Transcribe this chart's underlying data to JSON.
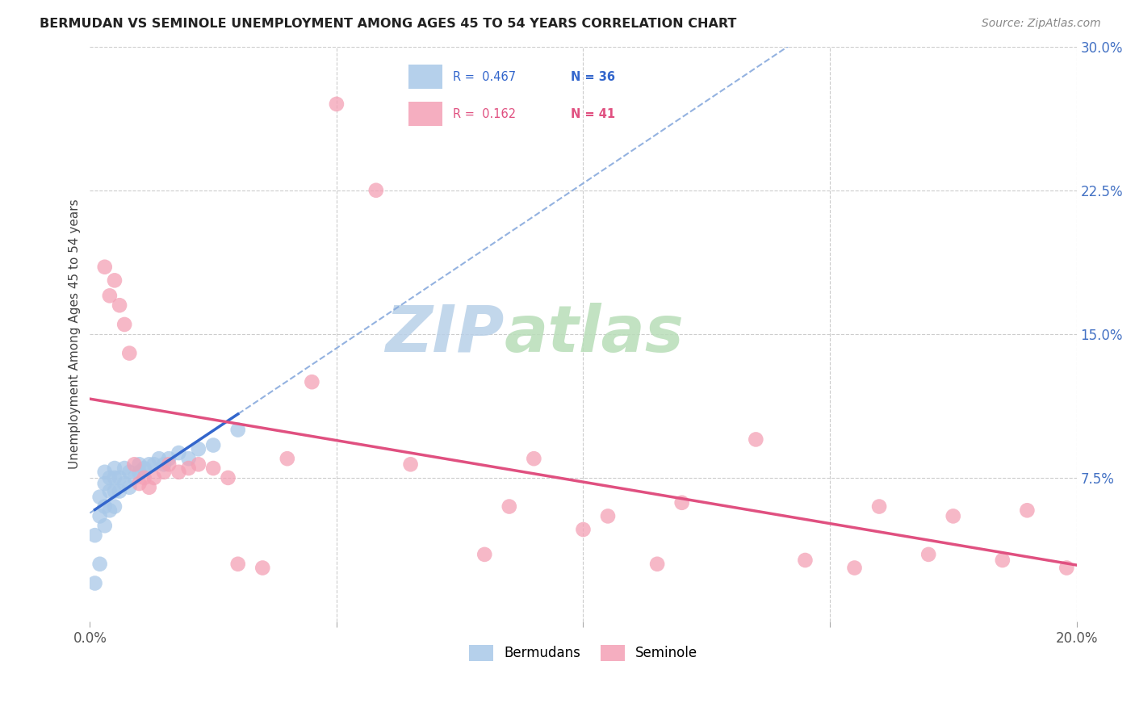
{
  "title": "BERMUDAN VS SEMINOLE UNEMPLOYMENT AMONG AGES 45 TO 54 YEARS CORRELATION CHART",
  "source": "Source: ZipAtlas.com",
  "ylabel": "Unemployment Among Ages 45 to 54 years",
  "xlim": [
    0.0,
    0.2
  ],
  "ylim": [
    0.0,
    0.3
  ],
  "color_blue": "#a8c8e8",
  "color_pink": "#f4a0b5",
  "trendline_blue_color": "#3366cc",
  "trendline_pink_color": "#e05080",
  "trendline_dashed_color": "#88aadd",
  "watermark_zip_color": "#c5d8ec",
  "watermark_atlas_color": "#c8ddc8",
  "background_color": "#ffffff",
  "bermudans_x": [
    0.001,
    0.001,
    0.002,
    0.002,
    0.002,
    0.003,
    0.003,
    0.003,
    0.003,
    0.004,
    0.004,
    0.004,
    0.005,
    0.005,
    0.005,
    0.005,
    0.006,
    0.006,
    0.007,
    0.007,
    0.008,
    0.008,
    0.009,
    0.01,
    0.01,
    0.011,
    0.012,
    0.013,
    0.014,
    0.015,
    0.016,
    0.018,
    0.02,
    0.022,
    0.025,
    0.03
  ],
  "bermudans_y": [
    0.02,
    0.045,
    0.03,
    0.055,
    0.065,
    0.05,
    0.06,
    0.072,
    0.078,
    0.058,
    0.068,
    0.075,
    0.06,
    0.068,
    0.075,
    0.08,
    0.068,
    0.075,
    0.072,
    0.08,
    0.07,
    0.078,
    0.075,
    0.078,
    0.082,
    0.08,
    0.082,
    0.082,
    0.085,
    0.082,
    0.085,
    0.088,
    0.085,
    0.09,
    0.092,
    0.1
  ],
  "seminole_x": [
    0.003,
    0.004,
    0.005,
    0.006,
    0.007,
    0.008,
    0.009,
    0.01,
    0.011,
    0.012,
    0.013,
    0.015,
    0.016,
    0.018,
    0.02,
    0.022,
    0.025,
    0.028,
    0.03,
    0.035,
    0.04,
    0.045,
    0.05,
    0.058,
    0.065,
    0.08,
    0.085,
    0.09,
    0.1,
    0.105,
    0.115,
    0.12,
    0.135,
    0.145,
    0.155,
    0.16,
    0.17,
    0.175,
    0.185,
    0.19,
    0.198
  ],
  "seminole_y": [
    0.185,
    0.17,
    0.178,
    0.165,
    0.155,
    0.14,
    0.082,
    0.072,
    0.075,
    0.07,
    0.075,
    0.078,
    0.082,
    0.078,
    0.08,
    0.082,
    0.08,
    0.075,
    0.03,
    0.028,
    0.085,
    0.125,
    0.27,
    0.225,
    0.082,
    0.035,
    0.06,
    0.085,
    0.048,
    0.055,
    0.03,
    0.062,
    0.095,
    0.032,
    0.028,
    0.06,
    0.035,
    0.055,
    0.032,
    0.058,
    0.028
  ]
}
